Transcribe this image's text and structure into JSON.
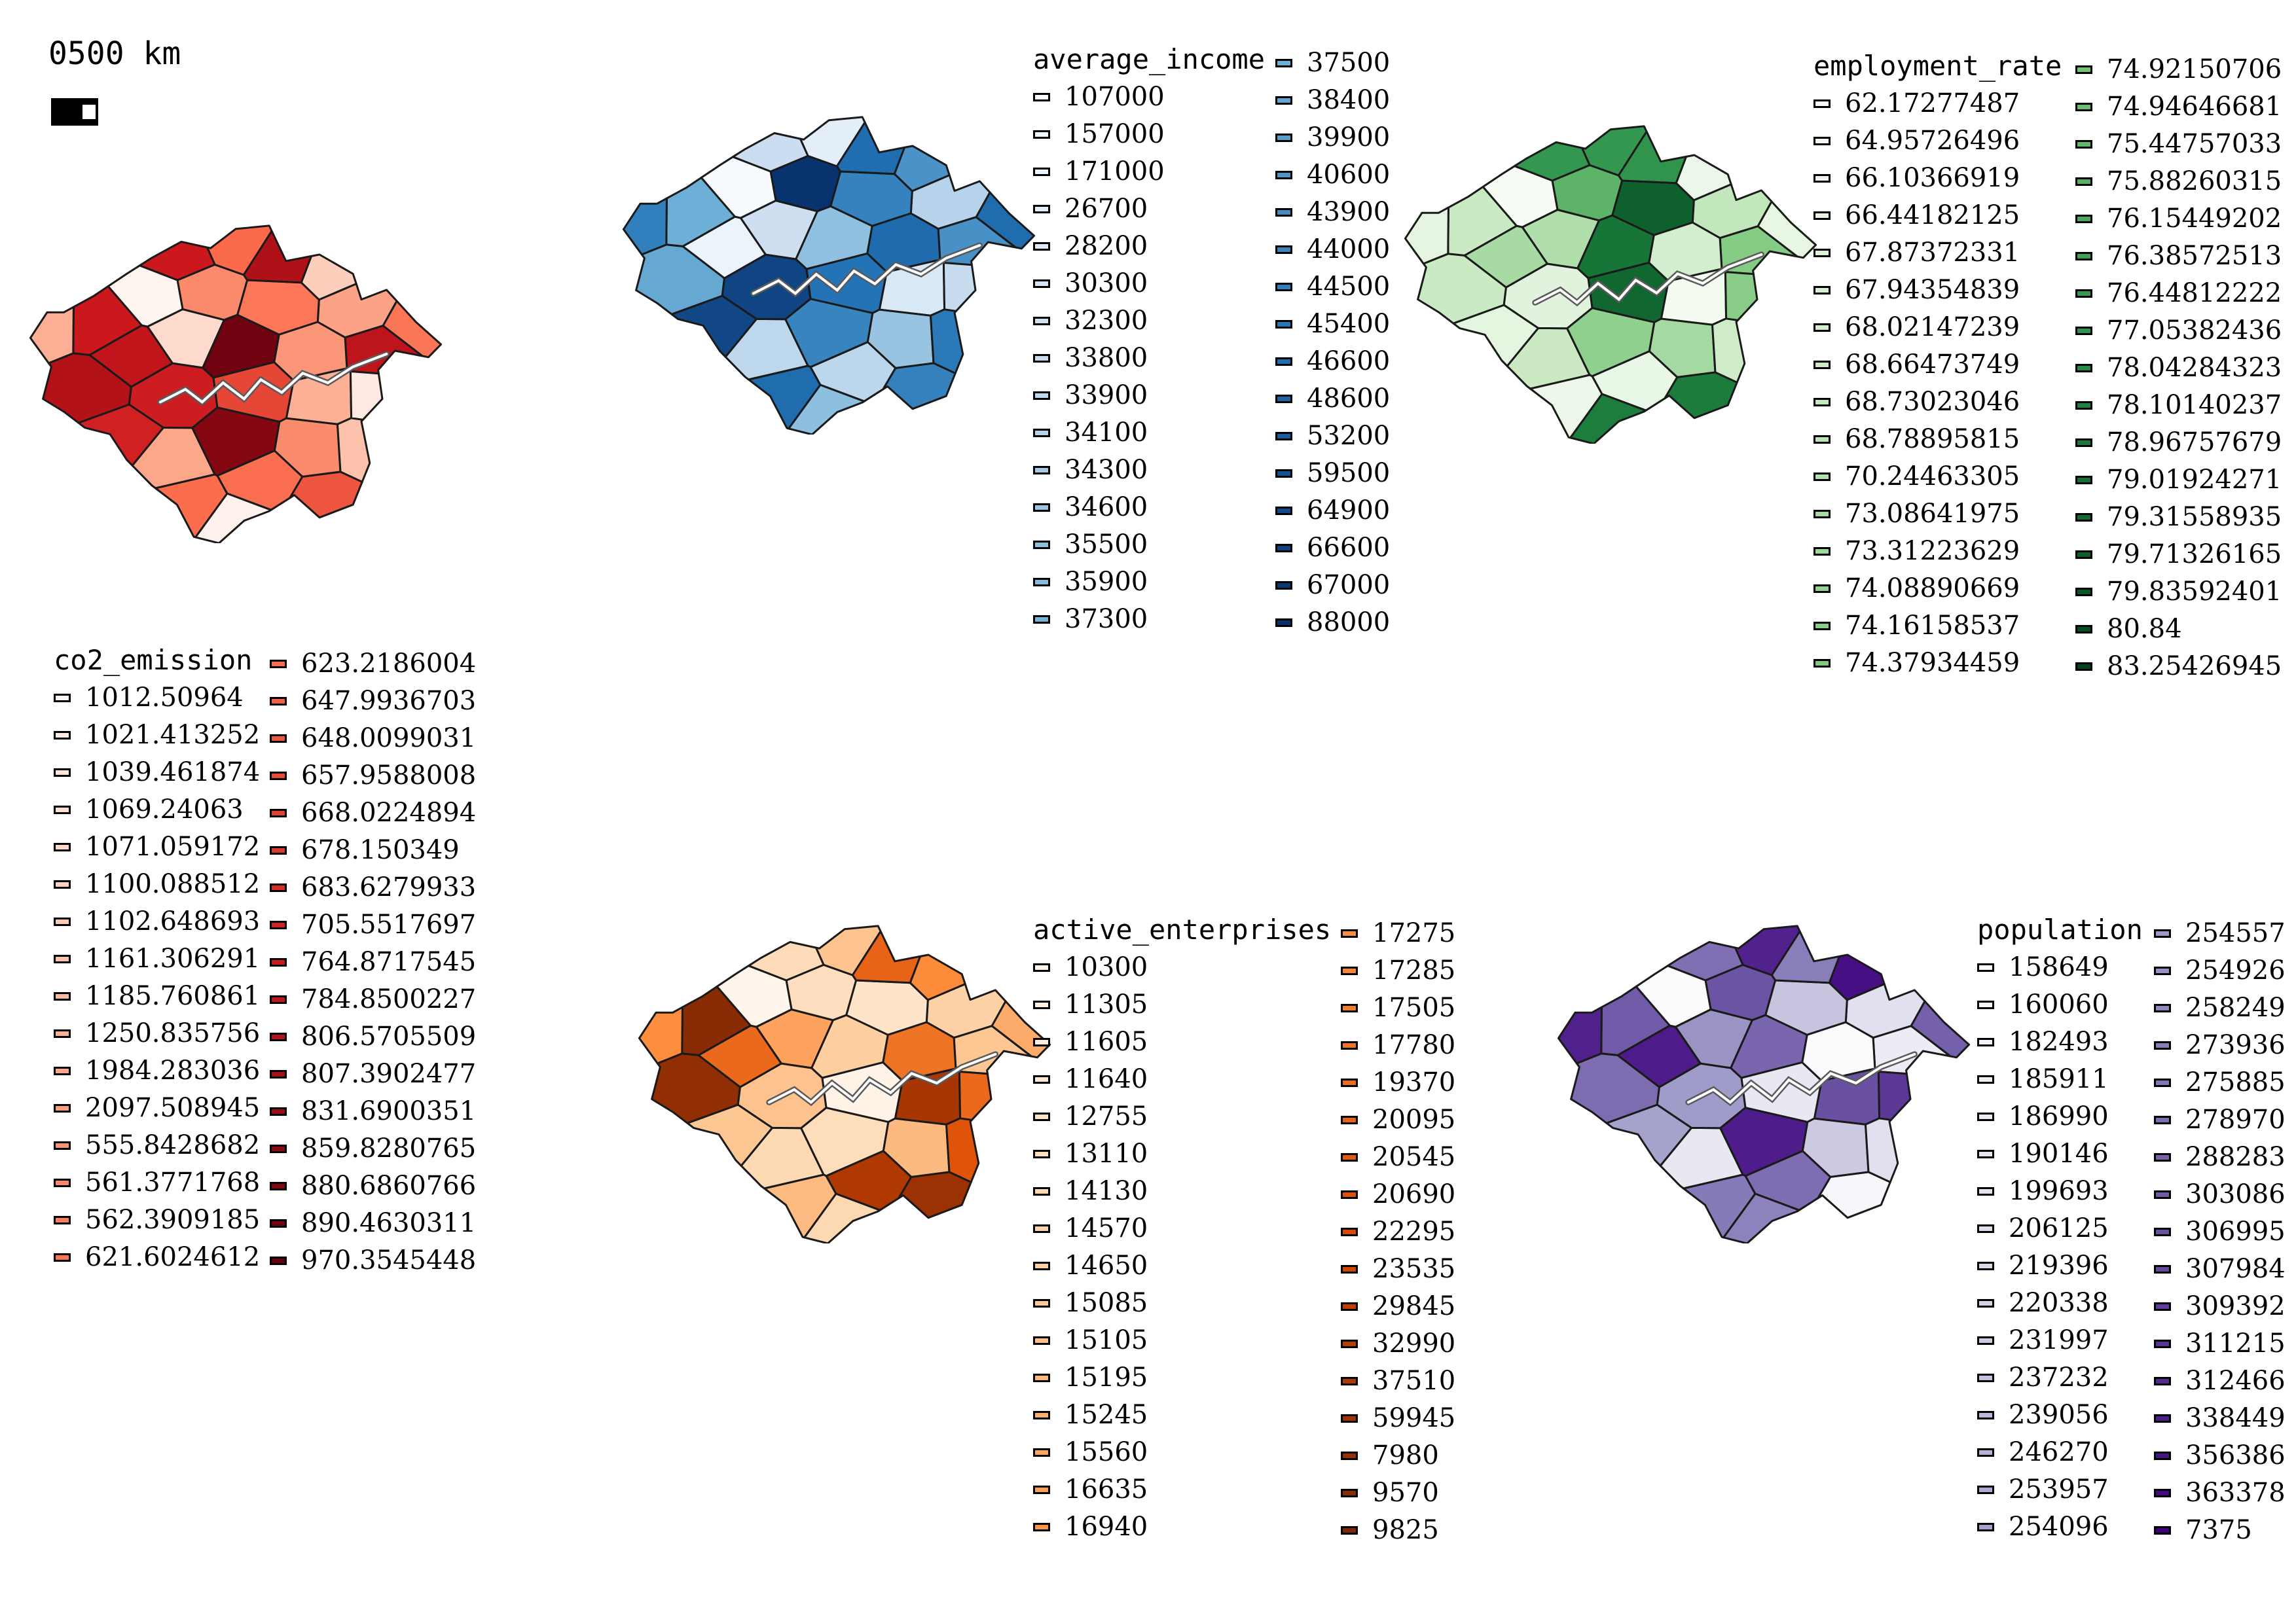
{
  "scalebar": {
    "label": "0500 km"
  },
  "colors": {
    "outline": "#1a1a1a",
    "river": "#5a5a5a",
    "ramps": {
      "co2_emission": [
        "#fff5f0",
        "#fcbba1",
        "#fb6a4a",
        "#cb181d",
        "#67000d"
      ],
      "average_income": [
        "#f7fbff",
        "#c6dbef",
        "#6baed6",
        "#2171b5",
        "#08306b"
      ],
      "employment_rate": [
        "#f7fcf5",
        "#c7e9c0",
        "#74c476",
        "#238b45",
        "#00441b"
      ],
      "active_enterprises": [
        "#fff5eb",
        "#fdd0a2",
        "#fd8d3c",
        "#d94801",
        "#7f2704"
      ],
      "population": [
        "#fcfbfd",
        "#dadaeb",
        "#9e9ac8",
        "#6a51a3",
        "#3f007d"
      ]
    }
  },
  "maps": [
    {
      "id": "co2_emission",
      "title": "co2_emission",
      "columns": [
        [
          "1012.50964",
          "1021.413252",
          "1039.461874",
          "1069.24063",
          "1071.059172",
          "1100.088512",
          "1102.648693",
          "1161.306291",
          "1185.760861",
          "1250.835756",
          "1984.283036",
          "2097.508945",
          "555.8428682",
          "561.3771768",
          "562.3909185",
          "621.6024612"
        ],
        [
          "623.2186004",
          "647.9936703",
          "648.0099031",
          "657.9588008",
          "668.0224894",
          "678.150349",
          "683.6279933",
          "705.5517697",
          "764.8717545",
          "784.8500227",
          "806.5705509",
          "807.3902477",
          "831.6900351",
          "859.8280765",
          "880.6860766",
          "890.4630311",
          "970.3545448"
        ]
      ]
    },
    {
      "id": "average_income",
      "title": "average_income",
      "columns": [
        [
          "107000",
          "157000",
          "171000",
          "26700",
          "28200",
          "30300",
          "32300",
          "33800",
          "33900",
          "34100",
          "34300",
          "34600",
          "35500",
          "35900",
          "37300"
        ],
        [
          "37500",
          "38400",
          "39900",
          "40600",
          "43900",
          "44000",
          "44500",
          "45400",
          "46600",
          "48600",
          "53200",
          "59500",
          "64900",
          "66600",
          "67000",
          "88000"
        ]
      ]
    },
    {
      "id": "employment_rate",
      "title": "employment_rate",
      "columns": [
        [
          "62.17277487",
          "64.95726496",
          "66.10366919",
          "66.44182125",
          "67.87372331",
          "67.94354839",
          "68.02147239",
          "68.66473749",
          "68.73023046",
          "68.78895815",
          "70.24463305",
          "73.08641975",
          "73.31223629",
          "74.08890669",
          "74.16158537",
          "74.37934459"
        ],
        [
          "74.92150706",
          "74.94646681",
          "75.44757033",
          "75.88260315",
          "76.15449202",
          "76.38572513",
          "76.44812222",
          "77.05382436",
          "78.04284323",
          "78.10140237",
          "78.96757679",
          "79.01924271",
          "79.31558935",
          "79.71326165",
          "79.83592401",
          "80.84",
          "83.25426945"
        ]
      ]
    },
    {
      "id": "active_enterprises",
      "title": "active_enterprises",
      "columns": [
        [
          "10300",
          "11305",
          "11605",
          "11640",
          "12755",
          "13110",
          "14130",
          "14570",
          "14650",
          "15085",
          "15105",
          "15195",
          "15245",
          "15560",
          "16635",
          "16940"
        ],
        [
          "17275",
          "17285",
          "17505",
          "17780",
          "19370",
          "20095",
          "20545",
          "20690",
          "22295",
          "23535",
          "29845",
          "32990",
          "37510",
          "59945",
          "7980",
          "9570",
          "9825"
        ]
      ]
    },
    {
      "id": "population",
      "title": "population",
      "columns": [
        [
          "158649",
          "160060",
          "182493",
          "185911",
          "186990",
          "190146",
          "199693",
          "206125",
          "219396",
          "220338",
          "231997",
          "237232",
          "239056",
          "246270",
          "253957",
          "254096"
        ],
        [
          "254557",
          "254926",
          "258249",
          "273936",
          "275885",
          "278970",
          "288283",
          "303086",
          "306995",
          "307984",
          "309392",
          "311215",
          "312466",
          "338449",
          "356386",
          "363378",
          "7375"
        ]
      ]
    }
  ]
}
